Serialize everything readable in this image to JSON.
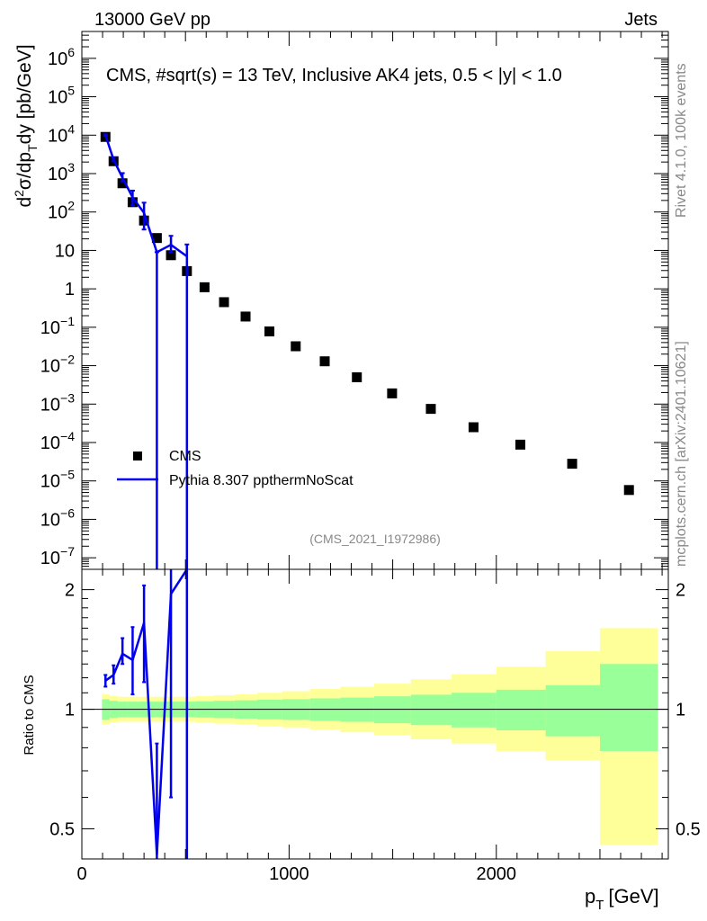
{
  "header": {
    "left": "13000 GeV pp",
    "right": "Jets",
    "side_top": "Rivet 4.1.0,  100k events",
    "side_bottom": "mcplots.cern.ch [arXiv:2401.10621]"
  },
  "colors": {
    "data": "#000000",
    "mc": "#0000ee",
    "band_inner": "#99ff99",
    "band_outer": "#ffff99"
  },
  "chart_data": [
    {
      "type": "scatter",
      "panel": "main",
      "title": "CMS, #sqrt(s) = 13 TeV, Inclusive AK4 jets, 0.5 < |y| < 1.0",
      "watermark": "(CMS_2021_I1972986)",
      "ylabel_parts": [
        "d",
        "2",
        "σ/dp",
        "T",
        "dy [pb/GeV]"
      ],
      "yscale": "log",
      "ylim": [
        5e-08,
        5000000.0
      ],
      "xlim": [
        0,
        2830
      ],
      "yticks": [
        {
          "v": 1e-07,
          "m": "10",
          "e": "−7"
        },
        {
          "v": 1e-06,
          "m": "10",
          "e": "−6"
        },
        {
          "v": 1e-05,
          "m": "10",
          "e": "−5"
        },
        {
          "v": 0.0001,
          "m": "10",
          "e": "−4"
        },
        {
          "v": 0.001,
          "m": "10",
          "e": "−3"
        },
        {
          "v": 0.01,
          "m": "10",
          "e": "−2"
        },
        {
          "v": 0.1,
          "m": "10",
          "e": "−1"
        },
        {
          "v": 1,
          "m": "1",
          "e": ""
        },
        {
          "v": 10,
          "m": "10",
          "e": ""
        },
        {
          "v": 100,
          "m": "10",
          "e": "2"
        },
        {
          "v": 1000,
          "m": "10",
          "e": "3"
        },
        {
          "v": 10000,
          "m": "10",
          "e": "4"
        },
        {
          "v": 100000,
          "m": "10",
          "e": "5"
        },
        {
          "v": 1000000,
          "m": "10",
          "e": "6"
        }
      ],
      "legend": {
        "position": "lower-left",
        "entries": [
          "CMS",
          "Pythia 8.307 ppthermNoScat"
        ]
      },
      "series": [
        {
          "name": "CMS",
          "marker": "square",
          "x": [
            114,
            153,
            196,
            245,
            300,
            362,
            430,
            507,
            592,
            686,
            790,
            905,
            1032,
            1172,
            1327,
            1497,
            1684,
            1890,
            2116,
            2366,
            2640
          ],
          "y": [
            9000,
            2100,
            560,
            180,
            60,
            21,
            7.5,
            2.9,
            1.1,
            0.45,
            0.19,
            0.078,
            0.032,
            0.013,
            0.005,
            0.0019,
            0.00075,
            0.00025,
            8.8e-05,
            2.8e-05,
            5.8e-06
          ]
        },
        {
          "name": "Pythia 8.307 ppthermNoScat",
          "marker": "line",
          "x": [
            114,
            153,
            196,
            245,
            300,
            362,
            430,
            507
          ],
          "y": [
            10000,
            2300,
            780,
            240,
            95,
            9,
            14,
            7
          ],
          "err_lo": [
            500,
            200,
            150,
            90,
            60,
            9,
            5,
            7
          ],
          "err_hi": [
            500,
            300,
            250,
            120,
            80,
            0,
            10,
            7.3
          ]
        }
      ]
    },
    {
      "type": "scatter",
      "panel": "ratio",
      "ylabel": "Ratio to CMS",
      "ylim": [
        0.42,
        2.25
      ],
      "xlim": [
        0,
        2830
      ],
      "yticks": [
        {
          "v": 0.5,
          "label": "0.5"
        },
        {
          "v": 1,
          "label": "1"
        },
        {
          "v": 2,
          "label": "2"
        }
      ],
      "xticks": [
        {
          "v": 0,
          "label": "0"
        },
        {
          "v": 1000,
          "label": "1000"
        },
        {
          "v": 2000,
          "label": "2000"
        }
      ],
      "xlabel_main": "p",
      "xlabel_sub": "T",
      "xlabel_unit": "[GeV]",
      "bands": {
        "edges": [
          97,
          133,
          174,
          220,
          272,
          330,
          395,
          468,
          548,
          638,
          737,
          846,
          967,
          1101,
          1248,
          1410,
          1588,
          1784,
          2000,
          2238,
          2500,
          2780
        ],
        "stat_lo": [
          0.94,
          0.95,
          0.955,
          0.955,
          0.955,
          0.955,
          0.955,
          0.955,
          0.953,
          0.95,
          0.947,
          0.943,
          0.94,
          0.935,
          0.93,
          0.922,
          0.912,
          0.9,
          0.885,
          0.855,
          0.785
        ],
        "stat_hi": [
          1.06,
          1.05,
          1.045,
          1.045,
          1.045,
          1.045,
          1.045,
          1.045,
          1.047,
          1.05,
          1.053,
          1.057,
          1.06,
          1.065,
          1.07,
          1.078,
          1.088,
          1.1,
          1.12,
          1.15,
          1.3
        ],
        "tot_lo": [
          0.915,
          0.925,
          0.93,
          0.93,
          0.93,
          0.93,
          0.93,
          0.93,
          0.925,
          0.92,
          0.915,
          0.905,
          0.9,
          0.89,
          0.875,
          0.86,
          0.84,
          0.82,
          0.785,
          0.745,
          0.455
        ],
        "tot_hi": [
          1.09,
          1.08,
          1.075,
          1.075,
          1.075,
          1.075,
          1.075,
          1.075,
          1.08,
          1.085,
          1.09,
          1.1,
          1.11,
          1.125,
          1.14,
          1.16,
          1.19,
          1.225,
          1.28,
          1.4,
          1.6
        ]
      },
      "series": [
        {
          "name": "Pythia 8.307 ppthermNoScat / CMS",
          "x": [
            114,
            153,
            196,
            245,
            300,
            362,
            430,
            507
          ],
          "y": [
            1.18,
            1.22,
            1.38,
            1.33,
            1.65,
            0.43,
            1.95,
            2.3
          ],
          "err_lo": [
            0.04,
            0.06,
            0.08,
            0.24,
            0.48,
            0.01,
            1.35,
            1.88
          ],
          "err_hi": [
            0.04,
            0.07,
            0.13,
            0.28,
            0.4,
            0.39,
            0.3,
            0.0
          ]
        }
      ]
    }
  ]
}
